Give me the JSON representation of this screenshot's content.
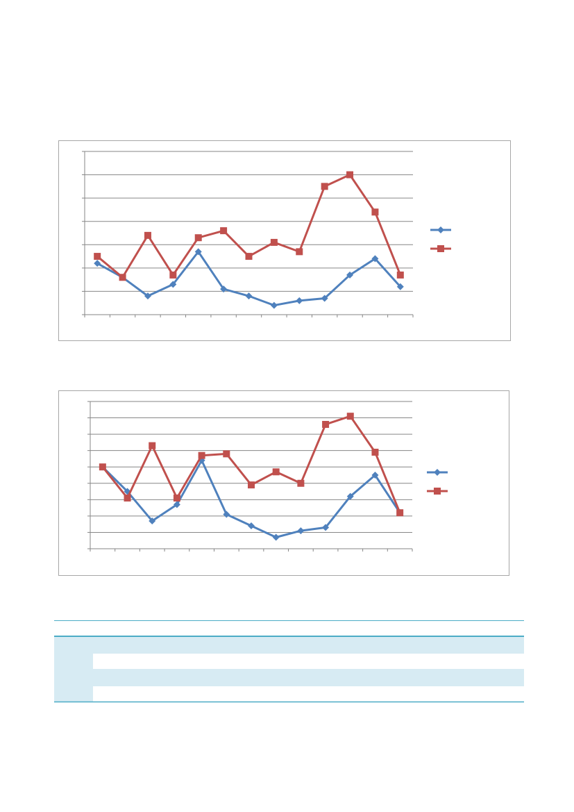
{
  "chart_data": [
    {
      "type": "line",
      "categories": [
        null,
        null,
        null,
        null,
        null,
        null,
        null,
        null,
        null,
        null,
        null,
        null,
        null
      ],
      "ylim": [
        0,
        7
      ],
      "yticks": [
        0,
        1,
        2,
        3,
        4,
        5,
        6,
        7
      ],
      "grid": true,
      "legend": "right",
      "series": [
        {
          "color": "#4f81bd",
          "marker": "diamond",
          "values": [
            2.2,
            1.6,
            0.8,
            1.3,
            2.7,
            1.1,
            0.8,
            0.4,
            0.6,
            0.7,
            1.7,
            2.4,
            1.2
          ]
        },
        {
          "color": "#c0504d",
          "marker": "square",
          "values": [
            2.5,
            1.6,
            3.4,
            1.7,
            3.3,
            3.6,
            2.5,
            3.1,
            2.7,
            5.5,
            6.0,
            4.4,
            1.7
          ]
        }
      ]
    },
    {
      "type": "line",
      "categories": [
        null,
        null,
        null,
        null,
        null,
        null,
        null,
        null,
        null,
        null,
        null,
        null,
        null
      ],
      "ylim": [
        0,
        9
      ],
      "yticks": [
        0,
        1,
        2,
        3,
        4,
        5,
        6,
        7,
        8,
        9
      ],
      "grid": true,
      "legend": "right",
      "series": [
        {
          "color": "#4f81bd",
          "marker": "diamond",
          "values": [
            5.0,
            3.5,
            1.7,
            2.7,
            5.4,
            2.1,
            1.4,
            0.7,
            1.1,
            1.3,
            3.2,
            4.5,
            2.2
          ]
        },
        {
          "color": "#c0504d",
          "marker": "square",
          "values": [
            5.0,
            3.1,
            6.3,
            3.1,
            5.7,
            5.8,
            3.9,
            4.7,
            4.0,
            7.6,
            8.1,
            5.9,
            2.2
          ]
        }
      ]
    }
  ]
}
